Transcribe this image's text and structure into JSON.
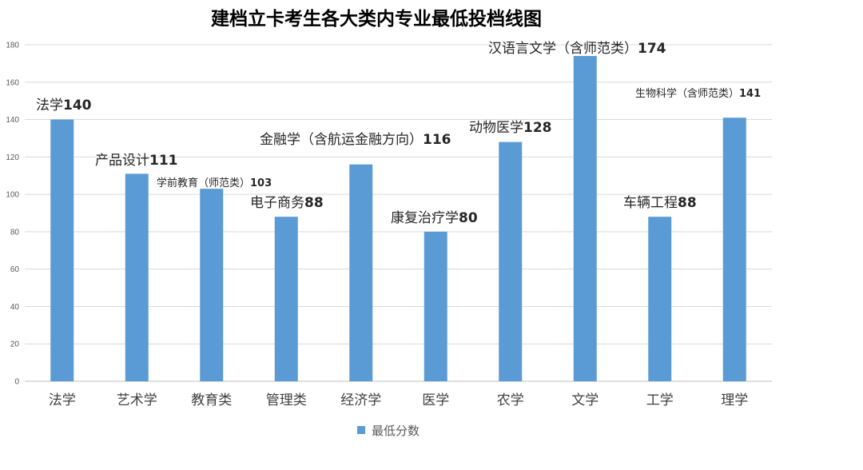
{
  "chart_data": {
    "type": "bar",
    "title": "建档立卡考生各大类内专业最低投档线图",
    "categories": [
      "法学",
      "艺术学",
      "教育类",
      "管理类",
      "经济学",
      "医学",
      "农学",
      "文学",
      "工学",
      "理学"
    ],
    "series": [
      {
        "name": "最低分数",
        "values": [
          140,
          111,
          103,
          88,
          116,
          80,
          128,
          174,
          88,
          141
        ]
      }
    ],
    "data_label_majors": [
      "法学",
      "产品设计",
      "学前教育（师范类）",
      "电子商务",
      "金融学（含航运金融方向）",
      "康复治疗学",
      "动物医学",
      "汉语言文学（含师范类）",
      "车辆工程",
      "生物科学（含师范类）"
    ],
    "ylim": [
      0,
      180
    ],
    "yticks": [
      0,
      20,
      40,
      60,
      80,
      100,
      120,
      140,
      160,
      180
    ],
    "grid": true,
    "legend": "bottom",
    "colors": {
      "bar": "#5b9bd5"
    }
  }
}
